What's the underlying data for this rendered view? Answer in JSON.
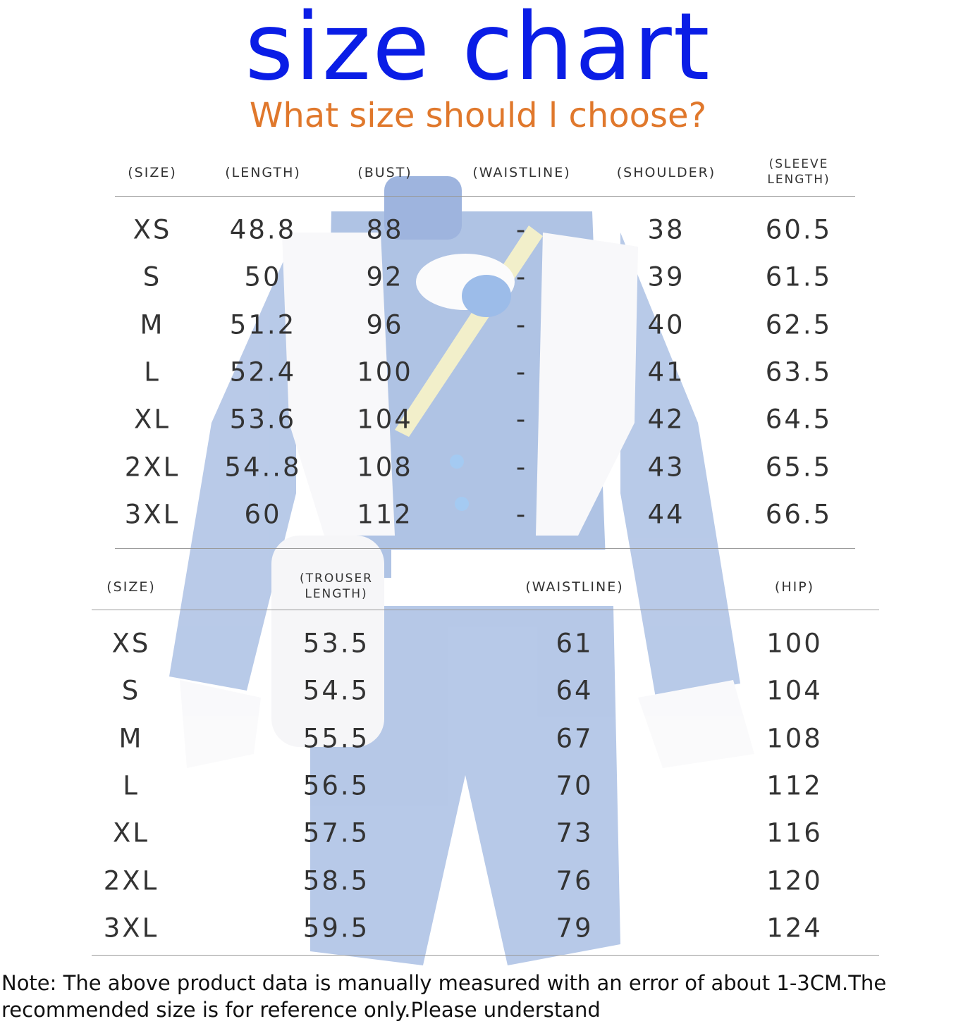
{
  "title": "size chart",
  "subtitle": "What size should l choose?",
  "colors": {
    "title": "#0a1de6",
    "subtitle": "#e0782c",
    "garment": "#6f93cf"
  },
  "background_image": "faded blue and white lolita costume outfit",
  "top_table": {
    "headers": [
      "(SIZE)",
      "(LENGTH)",
      "(BUST)",
      "(WAISTLINE)",
      "(SHOULDER)",
      "(SLEEVE LENGTH)"
    ],
    "rows": [
      [
        "XS",
        "48.8",
        "88",
        "-",
        "38",
        "60.5"
      ],
      [
        "S",
        "50",
        "92",
        "-",
        "39",
        "61.5"
      ],
      [
        "M",
        "51.2",
        "96",
        "-",
        "40",
        "62.5"
      ],
      [
        "L",
        "52.4",
        "100",
        "-",
        "41",
        "63.5"
      ],
      [
        "XL",
        "53.6",
        "104",
        "-",
        "42",
        "64.5"
      ],
      [
        "2XL",
        "54..8",
        "108",
        "-",
        "43",
        "65.5"
      ],
      [
        "3XL",
        "60",
        "112",
        "-",
        "44",
        "66.5"
      ]
    ]
  },
  "bottom_table": {
    "headers": [
      "(SIZE)",
      "(TROUSER LENGTH)",
      "(WAISTLINE)",
      "(HIP)"
    ],
    "rows": [
      [
        "XS",
        "53.5",
        "61",
        "100"
      ],
      [
        "S",
        "54.5",
        "64",
        "104"
      ],
      [
        "M",
        "55.5",
        "67",
        "108"
      ],
      [
        "L",
        "56.5",
        "70",
        "112"
      ],
      [
        "XL",
        "57.5",
        "73",
        "116"
      ],
      [
        "2XL",
        "58.5",
        "76",
        "120"
      ],
      [
        "3XL",
        "59.5",
        "79",
        "124"
      ]
    ]
  },
  "note": "Note: The above product data is manually measured with an error of about 1-3CM.The recommended size is for reference only.Please understand"
}
